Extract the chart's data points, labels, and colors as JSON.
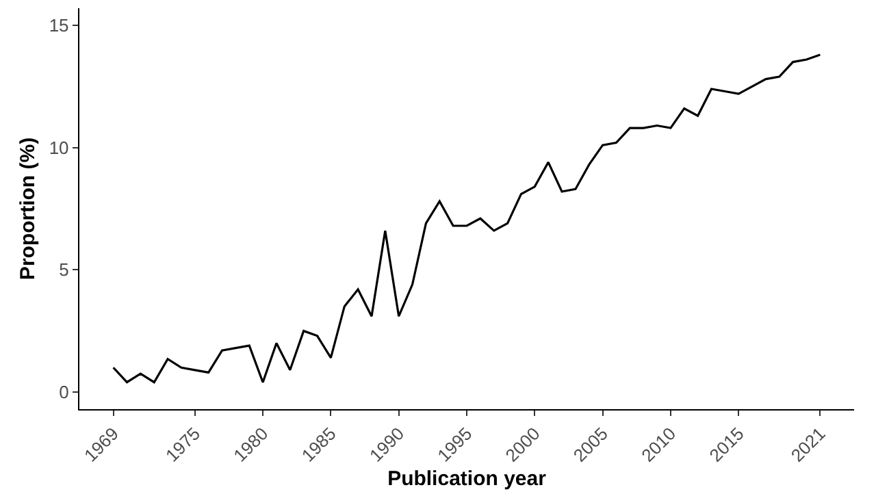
{
  "chart_data": {
    "type": "line",
    "xlabel": "Publication year",
    "ylabel": "Proportion (%)",
    "x": [
      1969,
      1970,
      1971,
      1972,
      1973,
      1974,
      1975,
      1976,
      1977,
      1978,
      1979,
      1980,
      1981,
      1982,
      1983,
      1984,
      1985,
      1986,
      1987,
      1988,
      1989,
      1990,
      1991,
      1992,
      1993,
      1994,
      1995,
      1996,
      1997,
      1998,
      1999,
      2000,
      2001,
      2002,
      2003,
      2004,
      2005,
      2006,
      2007,
      2008,
      2009,
      2010,
      2011,
      2012,
      2013,
      2014,
      2015,
      2016,
      2017,
      2018,
      2019,
      2020,
      2021
    ],
    "series": [
      {
        "color": "#000000",
        "values": [
          1.0,
          0.4,
          0.75,
          0.4,
          1.35,
          1.0,
          0.9,
          0.8,
          1.7,
          1.8,
          1.9,
          0.4,
          2.0,
          0.9,
          2.5,
          2.3,
          1.4,
          3.5,
          4.2,
          3.1,
          6.6,
          3.1,
          4.4,
          6.9,
          7.8,
          6.8,
          6.8,
          7.1,
          6.6,
          6.9,
          8.1,
          8.4,
          9.4,
          8.2,
          8.3,
          9.3,
          10.1,
          10.2,
          10.8,
          10.8,
          10.9,
          10.8,
          11.6,
          11.3,
          12.4,
          12.3,
          12.2,
          12.5,
          12.8,
          12.9,
          13.5,
          13.6,
          13.8
        ]
      }
    ],
    "xlim": [
      1966.5,
      2023.5
    ],
    "xticks": [
      1969,
      1975,
      1980,
      1985,
      1990,
      1995,
      2000,
      2005,
      2010,
      2015,
      2021
    ],
    "ylim": [
      -0.7,
      15.7
    ],
    "yticks": [
      0,
      5,
      10,
      15
    ],
    "marker": "none",
    "line_style": "solid"
  }
}
